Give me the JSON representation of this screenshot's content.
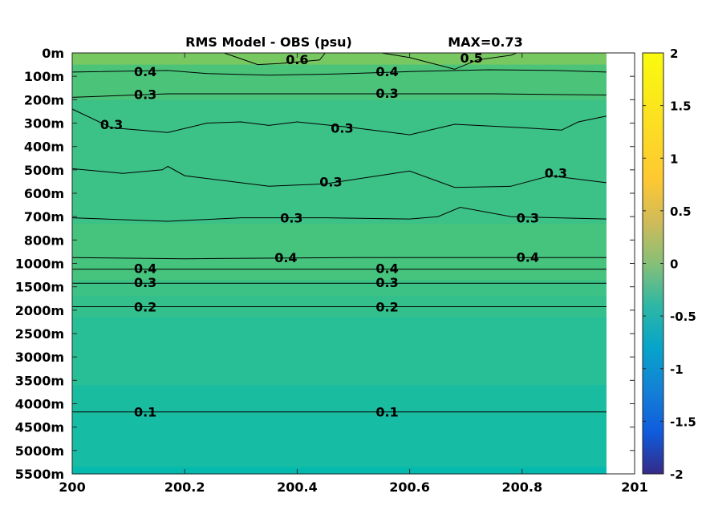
{
  "chart_data": {
    "type": "heatmap",
    "title": "RMS Model - OBS (psu)",
    "max_label": "MAX=0.73",
    "xlabel": "",
    "ylabel": "",
    "xlim": [
      200,
      201
    ],
    "x_ticks": [
      "200",
      "200.2",
      "200.4",
      "200.6",
      "200.8",
      "201"
    ],
    "data_x_end": 200.95,
    "y_ticks": [
      "0m",
      "100m",
      "200m",
      "300m",
      "400m",
      "500m",
      "600m",
      "700m",
      "800m",
      "1000m",
      "1500m",
      "2000m",
      "2500m",
      "3000m",
      "3500m",
      "4000m",
      "4500m",
      "5000m",
      "5500m"
    ],
    "colorbar": {
      "min": -2,
      "max": 2,
      "ticks": [
        "2",
        "1.5",
        "1",
        "0.5",
        "0",
        "-0.5",
        "-1",
        "-1.5",
        "-2"
      ],
      "colormap": "parula"
    },
    "depth_bands": [
      {
        "from": 0,
        "to": 0.5,
        "value": 0.58
      },
      {
        "from": 0.5,
        "to": 2,
        "value": 0.42
      },
      {
        "from": 2,
        "to": 7.3,
        "value": 0.33
      },
      {
        "from": 7.3,
        "to": 9.7,
        "value": 0.4
      },
      {
        "from": 9.7,
        "to": 10.4,
        "value": 0.34
      },
      {
        "from": 10.4,
        "to": 11.3,
        "value": 0.27
      },
      {
        "from": 11.3,
        "to": 14.2,
        "value": 0.2
      },
      {
        "from": 14.2,
        "to": 15.5,
        "value": 0.13
      },
      {
        "from": 15.5,
        "to": 17.7,
        "value": 0.11
      },
      {
        "from": 17.7,
        "to": 18,
        "value": 0.02
      }
    ],
    "contours": [
      {
        "level": "0.6",
        "points": [
          [
            200.27,
            0
          ],
          [
            200.33,
            0.5
          ],
          [
            200.37,
            0.45
          ],
          [
            200.44,
            0.3
          ],
          [
            200.45,
            0
          ]
        ],
        "labels": [
          [
            200.4,
            0.28
          ]
        ]
      },
      {
        "level": "0.5",
        "points": [
          [
            200.55,
            0
          ],
          [
            200.6,
            0.2
          ],
          [
            200.68,
            0.7
          ],
          [
            200.72,
            0.3
          ],
          [
            200.78,
            0.1
          ],
          [
            200.79,
            0
          ]
        ],
        "labels": [
          [
            200.71,
            0.2
          ]
        ]
      },
      {
        "level": "0.4",
        "points": [
          [
            200,
            0.82
          ],
          [
            200.17,
            0.75
          ],
          [
            200.24,
            0.88
          ],
          [
            200.35,
            0.95
          ],
          [
            200.47,
            0.9
          ],
          [
            200.6,
            0.8
          ],
          [
            200.74,
            0.72
          ],
          [
            200.86,
            0.75
          ],
          [
            200.95,
            0.82
          ]
        ],
        "labels": [
          [
            200.13,
            0.78
          ],
          [
            200.56,
            0.78
          ]
        ]
      },
      {
        "level": "0.3",
        "points": [
          [
            200,
            1.9
          ],
          [
            200.17,
            1.75
          ],
          [
            200.5,
            1.75
          ],
          [
            200.75,
            1.75
          ],
          [
            200.95,
            1.8
          ]
        ],
        "labels": [
          [
            200.13,
            1.77
          ],
          [
            200.56,
            1.72
          ]
        ]
      },
      {
        "level": "0.3",
        "points": [
          [
            200,
            2.4
          ],
          [
            200.07,
            3.2
          ],
          [
            200.17,
            3.4
          ],
          [
            200.24,
            3.0
          ],
          [
            200.3,
            2.95
          ],
          [
            200.35,
            3.1
          ],
          [
            200.4,
            2.95
          ],
          [
            200.5,
            3.2
          ],
          [
            200.6,
            3.5
          ],
          [
            200.68,
            3.05
          ],
          [
            200.8,
            3.2
          ],
          [
            200.87,
            3.3
          ],
          [
            200.9,
            2.95
          ],
          [
            200.95,
            2.7
          ]
        ],
        "labels": [
          [
            200.07,
            3.05
          ],
          [
            200.48,
            3.2
          ]
        ]
      },
      {
        "level": "0.3",
        "points": [
          [
            200,
            4.95
          ],
          [
            200.09,
            5.15
          ],
          [
            200.16,
            5.0
          ],
          [
            200.17,
            4.85
          ],
          [
            200.2,
            5.25
          ],
          [
            200.35,
            5.7
          ],
          [
            200.45,
            5.6
          ],
          [
            200.6,
            5.05
          ],
          [
            200.68,
            5.75
          ],
          [
            200.78,
            5.7
          ],
          [
            200.85,
            5.25
          ],
          [
            200.95,
            5.55
          ]
        ],
        "labels": [
          [
            200.46,
            5.5
          ],
          [
            200.86,
            5.12
          ]
        ]
      },
      {
        "level": "0.3",
        "points": [
          [
            200,
            7.05
          ],
          [
            200.17,
            7.2
          ],
          [
            200.3,
            7.05
          ],
          [
            200.45,
            7.05
          ],
          [
            200.6,
            7.1
          ],
          [
            200.65,
            7.0
          ],
          [
            200.69,
            6.6
          ],
          [
            200.78,
            7.0
          ],
          [
            200.95,
            7.1
          ]
        ],
        "labels": [
          [
            200.39,
            7.05
          ],
          [
            200.81,
            7.05
          ]
        ]
      },
      {
        "level": "0.4",
        "points": [
          [
            200,
            8.75
          ],
          [
            200.2,
            8.8
          ],
          [
            200.5,
            8.75
          ],
          [
            200.75,
            8.75
          ],
          [
            200.95,
            8.75
          ]
        ],
        "labels": [
          [
            200.38,
            8.75
          ],
          [
            200.81,
            8.72
          ]
        ]
      },
      {
        "level": "0.4",
        "points": [
          [
            200,
            9.25
          ],
          [
            200.95,
            9.25
          ]
        ],
        "labels": [
          [
            200.13,
            9.2
          ],
          [
            200.56,
            9.2
          ]
        ]
      },
      {
        "level": "0.3",
        "points": [
          [
            200,
            9.85
          ],
          [
            200.95,
            9.85
          ]
        ],
        "labels": [
          [
            200.13,
            9.8
          ],
          [
            200.56,
            9.8
          ]
        ]
      },
      {
        "level": "0.2",
        "points": [
          [
            200,
            10.85
          ],
          [
            200.95,
            10.85
          ]
        ],
        "labels": [
          [
            200.13,
            10.85
          ],
          [
            200.56,
            10.85
          ]
        ]
      },
      {
        "level": "0.1",
        "points": [
          [
            200,
            15.35
          ],
          [
            200.95,
            15.35
          ]
        ],
        "labels": [
          [
            200.13,
            15.35
          ],
          [
            200.56,
            15.35
          ]
        ]
      }
    ]
  }
}
